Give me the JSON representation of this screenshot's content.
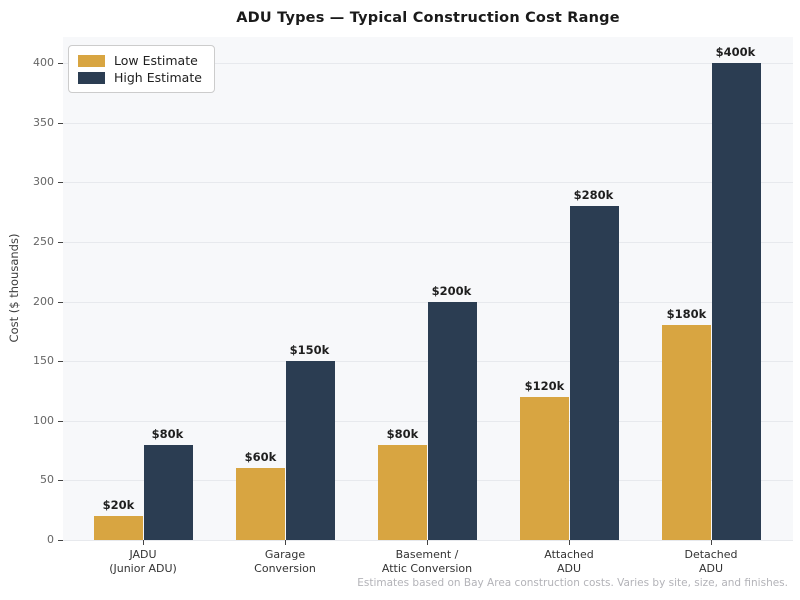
{
  "chart_data": {
    "type": "bar",
    "title": "ADU Types — Typical Construction Cost Range",
    "ylabel": "Cost ($ thousands)",
    "categories": [
      "JADU\n(Junior ADU)",
      "Garage\nConversion",
      "Basement /\nAttic Conversion",
      "Attached\nADU",
      "Detached\nADU"
    ],
    "series": [
      {
        "name": "Low Estimate",
        "color": "#d8a541",
        "values": [
          20,
          60,
          80,
          120,
          180
        ],
        "value_labels": [
          "$20k",
          "$60k",
          "$80k",
          "$120k",
          "$180k"
        ]
      },
      {
        "name": "High Estimate",
        "color": "#2b3d52",
        "values": [
          80,
          150,
          200,
          280,
          400
        ],
        "value_labels": [
          "$80k",
          "$150k",
          "$200k",
          "$280k",
          "$400k"
        ]
      }
    ],
    "yticks": [
      0,
      50,
      100,
      150,
      200,
      250,
      300,
      350,
      400
    ],
    "ylim": [
      0,
      422
    ],
    "grid": true,
    "legend_position": "upper left",
    "footnote": "Estimates based on Bay Area construction costs. Varies by site, size, and finishes.",
    "colors": {
      "plot_background": "#f7f8fa",
      "gridline": "#e7e9ed",
      "low_estimate": "#d8a541",
      "high_estimate": "#2b3d52"
    }
  }
}
